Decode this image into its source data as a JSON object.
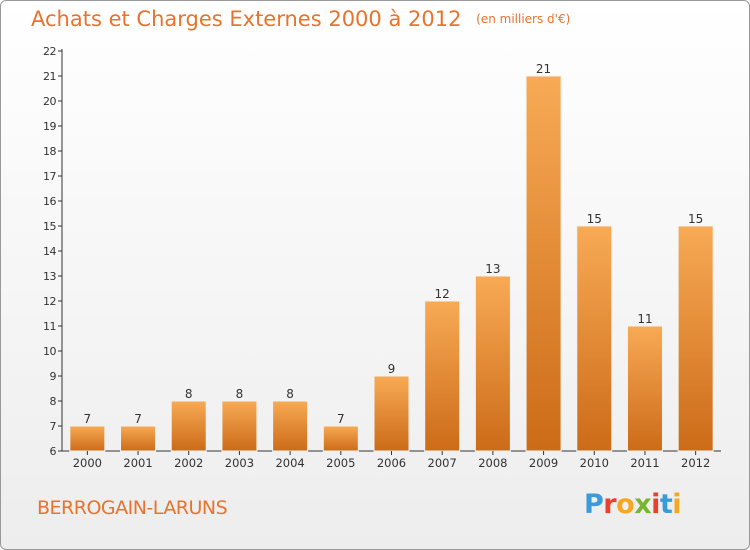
{
  "header": {
    "title": "Achats et Charges Externes 2000 à 2012",
    "subtitle": "(en milliers d'€)"
  },
  "footer": {
    "commune": "BERROGAIN-LARUNS",
    "brand": "Proxiti",
    "brand_colors": [
      "#3a9bd8",
      "#e8412d",
      "#f5a623",
      "#7ab530",
      "#e8412d",
      "#3a9bd8",
      "#f5a623"
    ]
  },
  "colors": {
    "accent": "#e8732c",
    "bar_top": "#f8aa55",
    "bar_bottom": "#cc6b18"
  },
  "chart_data": {
    "type": "bar",
    "categories": [
      "2000",
      "2001",
      "2002",
      "2003",
      "2004",
      "2005",
      "2006",
      "2007",
      "2008",
      "2009",
      "2010",
      "2011",
      "2012"
    ],
    "values": [
      7,
      7,
      8,
      8,
      8,
      7,
      9,
      12,
      13,
      21,
      15,
      11,
      15
    ],
    "data_labels": [
      "7",
      "7",
      "8",
      "8",
      "8",
      "7",
      "9",
      "12",
      "13",
      "21",
      "15",
      "11",
      "15"
    ],
    "ylim": [
      6,
      22
    ],
    "yticks": [
      6,
      7,
      8,
      9,
      10,
      11,
      12,
      13,
      14,
      15,
      16,
      17,
      18,
      19,
      20,
      21,
      22
    ],
    "grid": false,
    "xlabel": "",
    "ylabel": ""
  }
}
